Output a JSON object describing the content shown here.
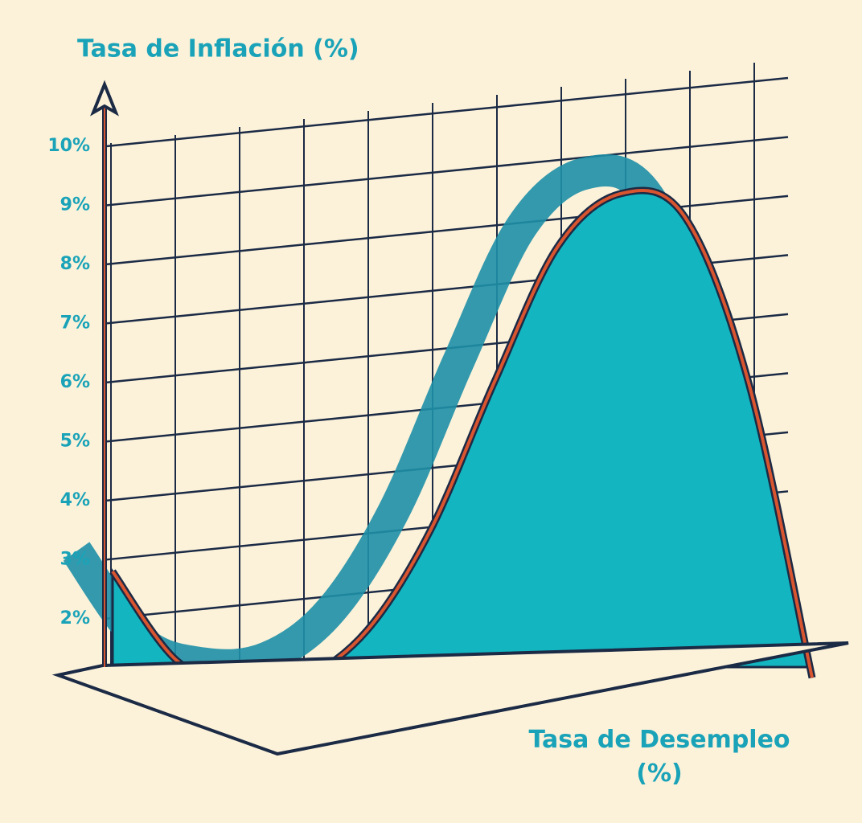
{
  "chart_data": {
    "type": "line",
    "y_label": "Tasa de Inflación (%)",
    "x_label": "Tasa de Desempleo (%)",
    "categories": [
      null,
      null,
      null,
      null,
      null,
      null,
      null,
      null,
      null,
      null,
      null,
      null
    ],
    "series": [
      {
        "name": null,
        "color": "#13b5c1",
        "values": [
          2.8,
          1.3,
          0.9,
          1.0,
          1.8,
          3.5,
          6.0,
          8.3,
          9.2,
          8.8,
          6.0,
          1.0
        ]
      }
    ],
    "ylim": [
      0.5,
      11
    ],
    "yticks": [
      {
        "value": 2,
        "label": "2%"
      },
      {
        "value": 3,
        "label": "3%"
      },
      {
        "value": 4,
        "label": "4%"
      },
      {
        "value": 5,
        "label": "5%"
      },
      {
        "value": 6,
        "label": "6%"
      },
      {
        "value": 7,
        "label": "7%"
      },
      {
        "value": 8,
        "label": "8%"
      },
      {
        "value": 9,
        "label": "9%"
      },
      {
        "value": 10,
        "label": "10%"
      }
    ],
    "grid": true
  }
}
